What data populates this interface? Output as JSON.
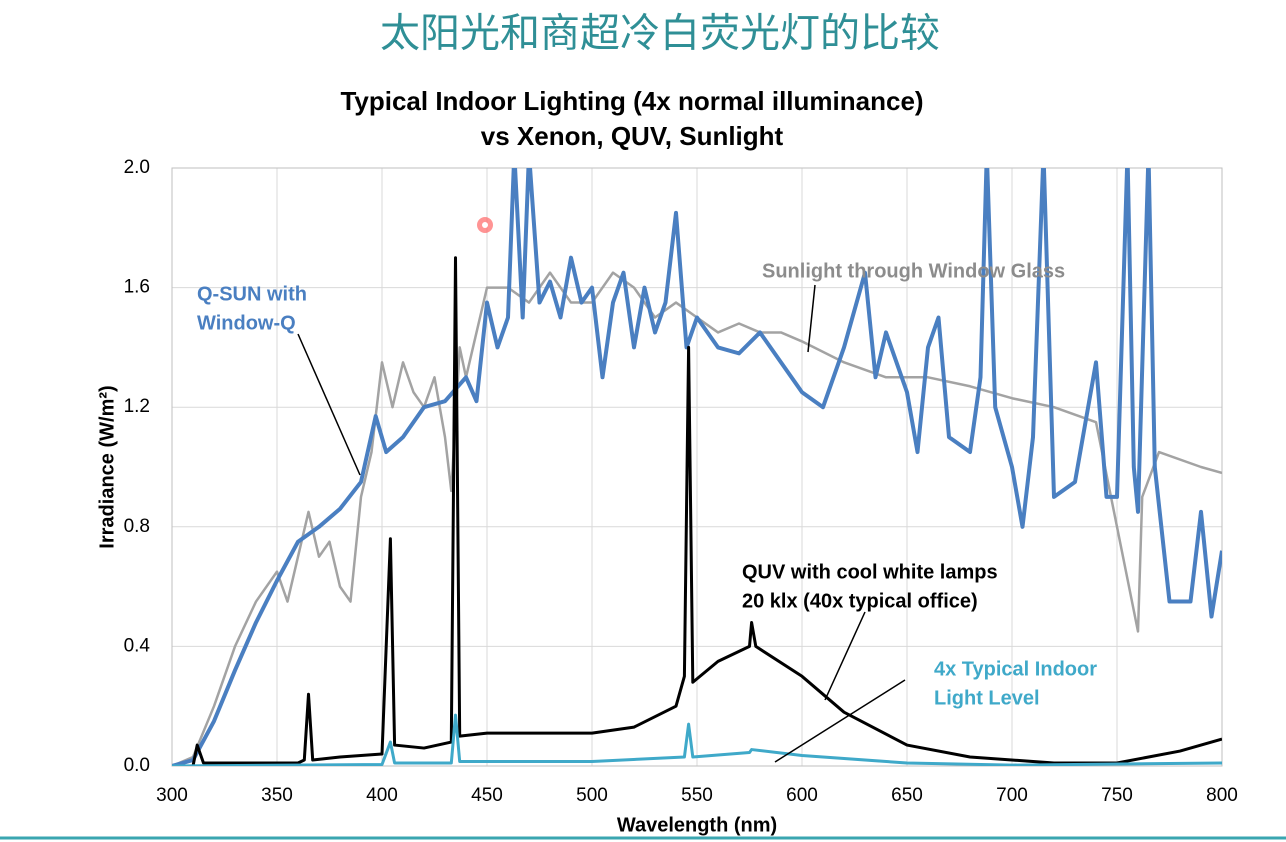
{
  "page_title": "太阳光和商超冷白荧光灯的比较",
  "chart_data": {
    "type": "line",
    "title": [
      "Typical Indoor Lighting (4x normal illuminance)",
      "vs Xenon, QUV, Sunlight"
    ],
    "x_label": "Wavelength (nm)",
    "y_label": "Irradiance (W/m²)",
    "xlim": [
      300,
      800
    ],
    "xticks": [
      300,
      350,
      400,
      450,
      500,
      550,
      600,
      650,
      700,
      750,
      800
    ],
    "ylim": [
      0,
      2
    ],
    "yticks": [
      {
        "value": 0,
        "label": "0.0"
      },
      {
        "value": 0.4,
        "label": "0.4"
      },
      {
        "value": 0.8,
        "label": "0.8"
      },
      {
        "value": 1.2,
        "label": "1.2"
      },
      {
        "value": 1.6,
        "label": "1.6"
      },
      {
        "value": 2,
        "label": "2.0"
      }
    ],
    "grid": true,
    "series": [
      {
        "name": [
          "Sunlight through Window Glass"
        ],
        "color": "#a3a3a3",
        "x": [
          300,
          310,
          320,
          330,
          340,
          350,
          355,
          360,
          365,
          370,
          375,
          380,
          385,
          390,
          395,
          400,
          405,
          410,
          415,
          420,
          425,
          430,
          433,
          437,
          440,
          445,
          450,
          460,
          470,
          480,
          490,
          500,
          510,
          520,
          530,
          540,
          550,
          560,
          570,
          580,
          590,
          600,
          620,
          640,
          660,
          680,
          700,
          720,
          740,
          760,
          762,
          770,
          790,
          800
        ],
        "values": [
          0,
          0.03,
          0.2,
          0.4,
          0.55,
          0.65,
          0.55,
          0.7,
          0.85,
          0.7,
          0.75,
          0.6,
          0.55,
          0.9,
          1.05,
          1.35,
          1.2,
          1.35,
          1.25,
          1.2,
          1.3,
          1.1,
          0.92,
          1.4,
          1.3,
          1.45,
          1.6,
          1.6,
          1.55,
          1.65,
          1.55,
          1.55,
          1.65,
          1.6,
          1.5,
          1.55,
          1.5,
          1.45,
          1.48,
          1.45,
          1.45,
          1.42,
          1.35,
          1.3,
          1.3,
          1.27,
          1.23,
          1.2,
          1.15,
          0.45,
          0.9,
          1.05,
          1.0,
          0.98
        ]
      },
      {
        "name": [
          "Q-SUN with",
          "Window-Q"
        ],
        "color": "#4a7fc1",
        "x": [
          300,
          310,
          320,
          330,
          340,
          350,
          360,
          370,
          380,
          390,
          397,
          402,
          410,
          420,
          430,
          440,
          445,
          450,
          455,
          460,
          463,
          467,
          470,
          475,
          480,
          485,
          490,
          495,
          500,
          505,
          510,
          515,
          520,
          525,
          530,
          535,
          540,
          545,
          550,
          560,
          570,
          580,
          590,
          600,
          610,
          620,
          630,
          635,
          640,
          650,
          655,
          660,
          665,
          670,
          680,
          685,
          688,
          692,
          700,
          705,
          710,
          715,
          720,
          730,
          740,
          745,
          750,
          755,
          758,
          760,
          765,
          768,
          775,
          785,
          790,
          795,
          800
        ],
        "values": [
          0,
          0.02,
          0.15,
          0.32,
          0.48,
          0.62,
          0.75,
          0.8,
          0.86,
          0.95,
          1.17,
          1.05,
          1.1,
          1.2,
          1.22,
          1.3,
          1.22,
          1.55,
          1.4,
          1.5,
          2.05,
          1.5,
          2.05,
          1.55,
          1.62,
          1.5,
          1.7,
          1.55,
          1.6,
          1.3,
          1.55,
          1.65,
          1.4,
          1.6,
          1.45,
          1.55,
          1.85,
          1.4,
          1.5,
          1.4,
          1.38,
          1.45,
          1.35,
          1.25,
          1.2,
          1.4,
          1.65,
          1.3,
          1.45,
          1.25,
          1.05,
          1.4,
          1.5,
          1.1,
          1.05,
          1.3,
          2.05,
          1.2,
          1.0,
          0.8,
          1.1,
          2.05,
          0.9,
          0.95,
          1.35,
          0.9,
          0.9,
          2.05,
          1.0,
          0.85,
          2.05,
          1.0,
          0.55,
          0.55,
          0.85,
          0.5,
          0.72
        ]
      },
      {
        "name": [
          "QUV with cool white lamps",
          "20 klx (40x typical office)"
        ],
        "color": "#000000",
        "x": [
          300,
          310,
          312,
          315,
          330,
          360,
          363,
          365,
          367,
          380,
          400,
          404,
          406,
          420,
          433,
          435,
          437,
          450,
          500,
          520,
          540,
          544,
          546,
          548,
          560,
          575,
          576,
          578,
          600,
          620,
          650,
          680,
          720,
          750,
          780,
          800
        ],
        "values": [
          0,
          0,
          0.07,
          0.01,
          0.01,
          0.01,
          0.02,
          0.24,
          0.02,
          0.03,
          0.04,
          0.76,
          0.07,
          0.06,
          0.08,
          1.7,
          0.1,
          0.11,
          0.11,
          0.13,
          0.2,
          0.3,
          1.4,
          0.28,
          0.35,
          0.4,
          0.48,
          0.4,
          0.3,
          0.18,
          0.07,
          0.03,
          0.01,
          0.01,
          0.05,
          0.09
        ]
      },
      {
        "name": [
          "4x Typical Indoor",
          "Light Level"
        ],
        "color": "#3fa9c9",
        "x": [
          300,
          400,
          404,
          406,
          433,
          435,
          437,
          500,
          544,
          546,
          548,
          575,
          576,
          600,
          650,
          700,
          800
        ],
        "values": [
          0,
          0.005,
          0.08,
          0.01,
          0.01,
          0.17,
          0.015,
          0.015,
          0.03,
          0.14,
          0.03,
          0.045,
          0.055,
          0.035,
          0.01,
          0.003,
          0.01
        ]
      }
    ]
  }
}
